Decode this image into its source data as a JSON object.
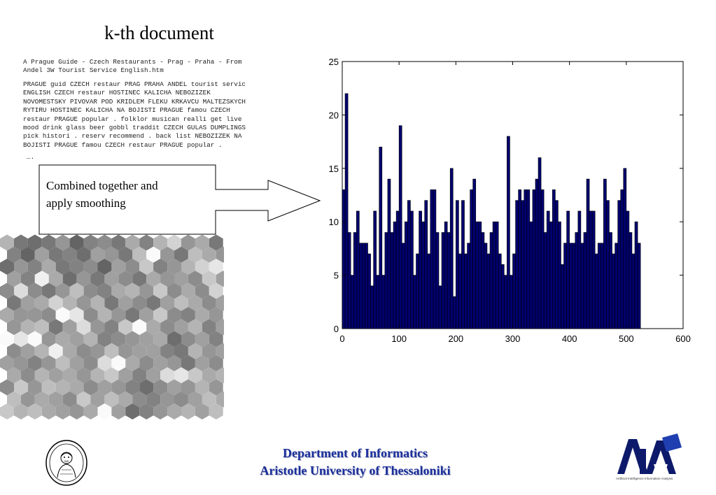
{
  "slide": {
    "title": "k-th document",
    "doc_title": "A Prague Guide - Czech Restaurants - Prag - Praha - From\nAndel 3W Tourist Service English.htm",
    "doc_body": "PRAGUE guid CZECH restaur PRAG PRAHA ANDEL tourist servic\nENGLISH CZECH restaur HOSTINEC KALICHA NEBOZIZEK\nNOVOMESTSKY PIVOVAR POD KRIDLEM FLEKU KRKAVCU MALTEZSKYCH\nRYTIRU HOSTINEC KALICHA NA BOJISTI PRAGUE famou CZECH\nrestaur PRAGUE popular . folklor musican realli get live\nmood drink glass beer gobbl traddit CZECH GULAS DUMPLINGS\npick histori . reserv recommend . back list NEBOZIZEK NA\nBOJISTI PRAGUE famou CZECH restaur PRAGUE popular .",
    "doc_ellipsis": "….",
    "callout": "Combined together and\napply smoothing"
  },
  "footer": {
    "line1": "Department of Informatics",
    "line2": "Aristotle University of Thessaloniki",
    "aia_caption": "Artificial Intelligence Information Analysis"
  },
  "colors": {
    "bar_fill": "#00006e",
    "bar_stroke": "#000000",
    "footer_text": "#1a2f9a"
  },
  "chart_data": {
    "type": "bar",
    "bin_width": 5,
    "x_start": 0,
    "values": [
      13,
      22,
      9,
      5,
      9,
      11,
      8,
      8,
      8,
      7,
      4,
      11,
      5,
      17,
      5,
      9,
      14,
      9,
      10,
      11,
      19,
      8,
      10,
      12,
      11,
      5,
      7,
      11,
      10,
      12,
      7,
      13,
      13,
      9,
      4,
      9,
      10,
      9,
      15,
      3,
      12,
      7,
      12,
      7,
      8,
      13,
      14,
      10,
      10,
      9,
      8,
      7,
      9,
      10,
      10,
      7,
      6,
      5,
      18,
      5,
      7,
      12,
      13,
      12,
      13,
      13,
      10,
      13,
      14,
      16,
      13,
      9,
      11,
      10,
      13,
      12,
      10,
      6,
      8,
      11,
      8,
      8,
      9,
      11,
      8,
      9,
      14,
      11,
      11,
      7,
      8,
      8,
      14,
      12,
      9,
      7,
      8,
      12,
      13,
      15,
      11,
      9,
      7,
      10,
      8
    ],
    "xlim": [
      0,
      600
    ],
    "ylim": [
      0,
      25
    ],
    "xticks": [
      "0",
      "100",
      "200",
      "300",
      "400",
      "500",
      "600"
    ],
    "yticks": [
      "0",
      "5",
      "10",
      "15",
      "20",
      "25"
    ],
    "title": "",
    "xlabel": "",
    "ylabel": "",
    "grid": false
  },
  "hexmap": {
    "cols": 16,
    "rows": 15,
    "gray_levels": [
      [
        180,
        120,
        110,
        120,
        150,
        100,
        130,
        140,
        120,
        170,
        130,
        180,
        210,
        150,
        170,
        120
      ],
      [
        130,
        100,
        160,
        120,
        130,
        110,
        160,
        150,
        120,
        190,
        250,
        150,
        120,
        190,
        170,
        150
      ],
      [
        110,
        150,
        130,
        170,
        120,
        130,
        140,
        100,
        160,
        140,
        200,
        130,
        150,
        180,
        210,
        230
      ],
      [
        160,
        130,
        240,
        170,
        110,
        150,
        120,
        160,
        140,
        120,
        170,
        150,
        160,
        140,
        200,
        160
      ],
      [
        140,
        220,
        140,
        120,
        150,
        190,
        140,
        130,
        170,
        180,
        150,
        200,
        140,
        170,
        140,
        210
      ],
      [
        120,
        160,
        170,
        210,
        180,
        150,
        180,
        120,
        160,
        140,
        120,
        160,
        190,
        170,
        140,
        160
      ],
      [
        170,
        150,
        150,
        140,
        250,
        230,
        140,
        180,
        150,
        120,
        160,
        200,
        140,
        130,
        170,
        150
      ],
      [
        150,
        180,
        190,
        120,
        160,
        220,
        150,
        130,
        200,
        250,
        170,
        140,
        160,
        180,
        130,
        160
      ],
      [
        250,
        230,
        250,
        150,
        170,
        160,
        180,
        130,
        140,
        150,
        160,
        170,
        110,
        140,
        160,
        130
      ],
      [
        140,
        160,
        180,
        240,
        170,
        140,
        150,
        190,
        150,
        160,
        160,
        130,
        120,
        180,
        150,
        160
      ],
      [
        160,
        150,
        130,
        150,
        190,
        160,
        140,
        220,
        250,
        170,
        140,
        160,
        150,
        120,
        160,
        140
      ],
      [
        170,
        140,
        180,
        160,
        170,
        150,
        180,
        200,
        160,
        130,
        160,
        220,
        230,
        200,
        170,
        180
      ],
      [
        140,
        200,
        150,
        190,
        180,
        170,
        140,
        160,
        150,
        130,
        110,
        140,
        160,
        150,
        180,
        150
      ],
      [
        190,
        150,
        170,
        160,
        140,
        200,
        160,
        190,
        170,
        140,
        130,
        150,
        140,
        160,
        190,
        170
      ],
      [
        200,
        180,
        190,
        170,
        160,
        150,
        170,
        250,
        160,
        110,
        130,
        150,
        170,
        180,
        160,
        190
      ]
    ]
  }
}
